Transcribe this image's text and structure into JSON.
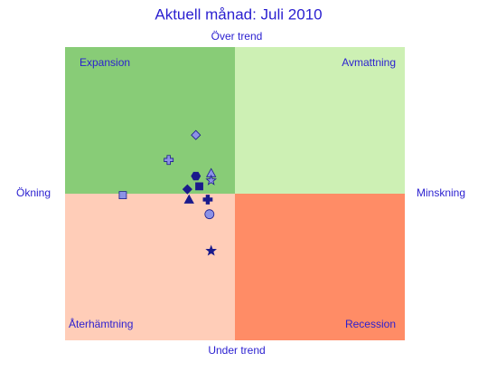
{
  "chart_data": {
    "type": "scatter",
    "title": "Aktuell månad: Juli 2010",
    "top_label": "Över trend",
    "bottom_label": "Under trend",
    "left_label": "Ökning",
    "right_label": "Minskning",
    "quadrants": [
      {
        "label": "Expansion",
        "color": "#88cc77"
      },
      {
        "label": "Avmattning",
        "color": "#cdf0b4"
      },
      {
        "label": "Återhämtning",
        "color": "#ffcdb8"
      },
      {
        "label": "Recession",
        "color": "#ff8c66"
      }
    ],
    "xlim": [
      -1,
      1
    ],
    "ylim": [
      -1,
      1
    ],
    "points": [
      {
        "x": -0.23,
        "y": 0.4,
        "marker": "diamond",
        "color": "#8c92e6"
      },
      {
        "x": -0.39,
        "y": 0.23,
        "marker": "cross",
        "color": "#8c92e6"
      },
      {
        "x": -0.23,
        "y": 0.12,
        "marker": "hexagon",
        "color": "#1a1a8c"
      },
      {
        "x": -0.14,
        "y": 0.14,
        "marker": "triangle",
        "color": "#8c92e6"
      },
      {
        "x": -0.14,
        "y": 0.09,
        "marker": "star",
        "color": "#8c92e6"
      },
      {
        "x": -0.21,
        "y": 0.05,
        "marker": "square",
        "color": "#1a1a8c"
      },
      {
        "x": -0.28,
        "y": 0.03,
        "marker": "diamond",
        "color": "#1a1a8c"
      },
      {
        "x": -0.66,
        "y": -0.01,
        "marker": "square",
        "color": "#8c92e6"
      },
      {
        "x": -0.27,
        "y": -0.04,
        "marker": "triangle",
        "color": "#1a1a8c"
      },
      {
        "x": -0.16,
        "y": -0.04,
        "marker": "cross",
        "color": "#1a1a8c"
      },
      {
        "x": -0.15,
        "y": -0.14,
        "marker": "circle",
        "color": "#8c92e6"
      },
      {
        "x": -0.14,
        "y": -0.39,
        "marker": "star",
        "color": "#1a1a8c"
      }
    ]
  }
}
